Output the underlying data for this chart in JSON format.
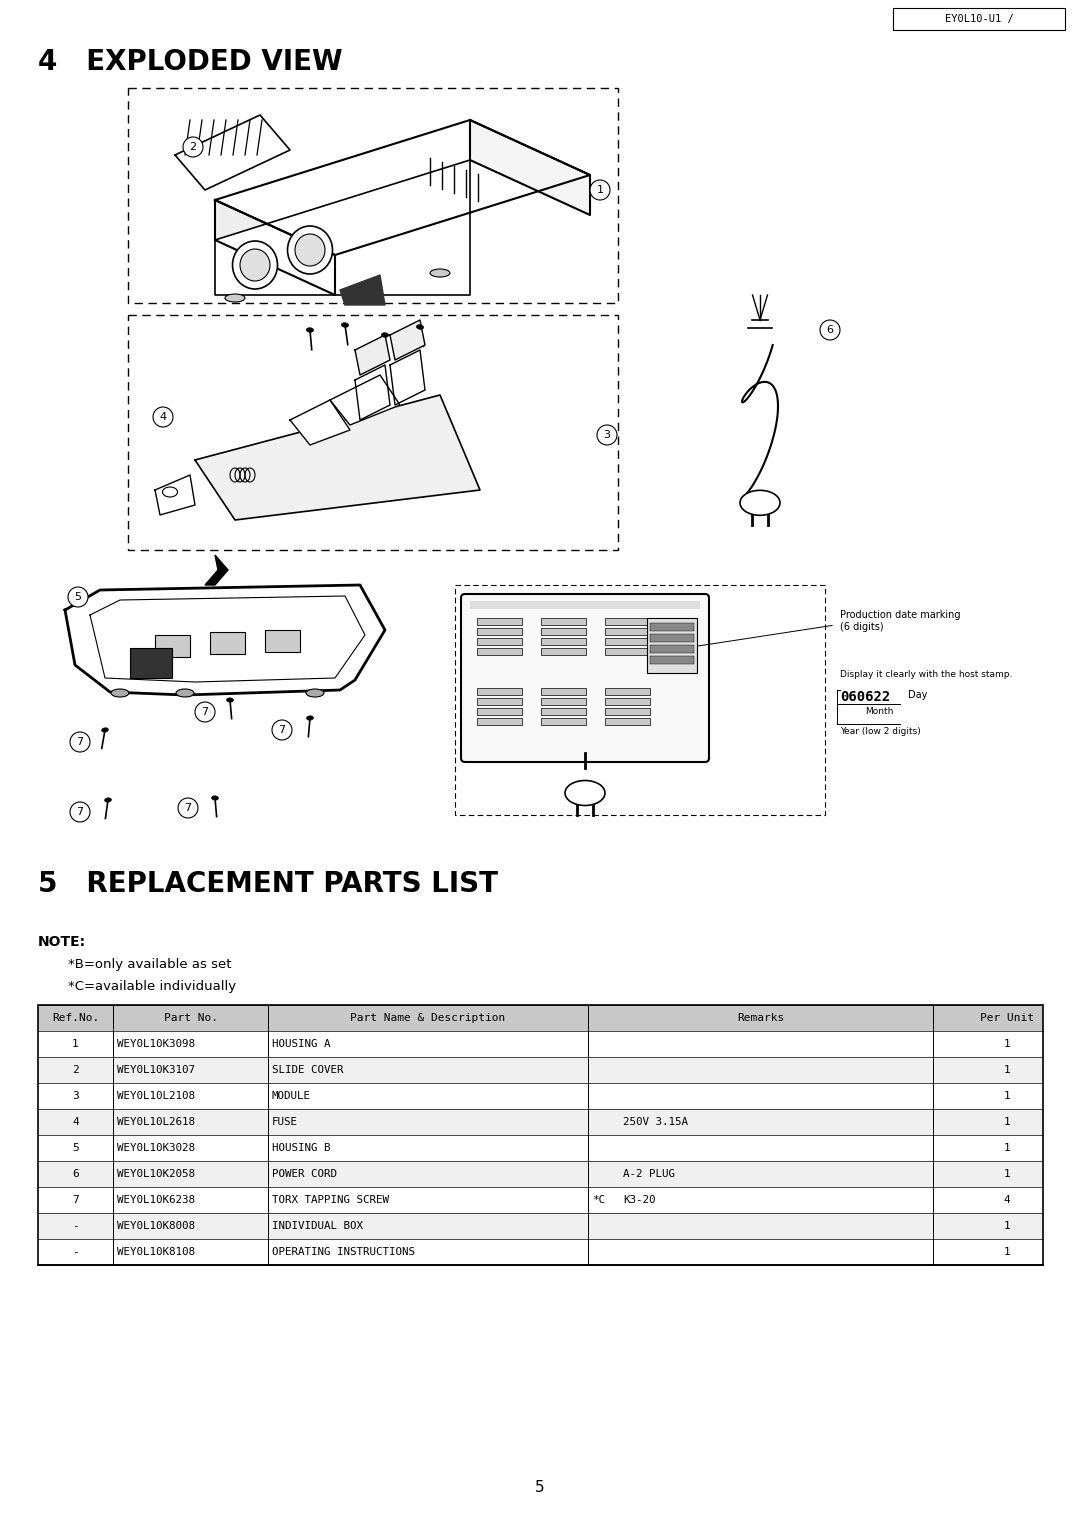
{
  "page_num": "5",
  "header_model": "EY0L10-U1 /",
  "section4_title": "4   EXPLODED VIEW",
  "section5_title": "5   REPLACEMENT PARTS LIST",
  "note_label": "NOTE:",
  "note_b": "*B=only available as set",
  "note_c": "*C=available individually",
  "table_rows": [
    [
      "1",
      "WEY0L10K3098",
      "HOUSING A",
      "",
      "",
      "1"
    ],
    [
      "2",
      "WEY0L10K3107",
      "SLIDE COVER",
      "",
      "",
      "1"
    ],
    [
      "3",
      "WEY0L10L2108",
      "MODULE",
      "",
      "",
      "1"
    ],
    [
      "4",
      "WEY0L10L2618",
      "FUSE",
      "",
      "250V 3.15A",
      "1"
    ],
    [
      "5",
      "WEY0L10K3028",
      "HOUSING B",
      "",
      "",
      "1"
    ],
    [
      "6",
      "WEY0L10K2058",
      "POWER CORD",
      "",
      "A-2 PLUG",
      "1"
    ],
    [
      "7",
      "WEY0L10K6238",
      "TORX TAPPING SCREW",
      "*C",
      "K3-20",
      "4"
    ],
    [
      "-",
      "WEY0L10K8008",
      "INDIVIDUAL BOX",
      "",
      "",
      "1"
    ],
    [
      "-",
      "WEY0L10K8108",
      "OPERATING INSTRUCTIONS",
      "",
      "",
      "1"
    ]
  ],
  "bg_color": "#ffffff"
}
